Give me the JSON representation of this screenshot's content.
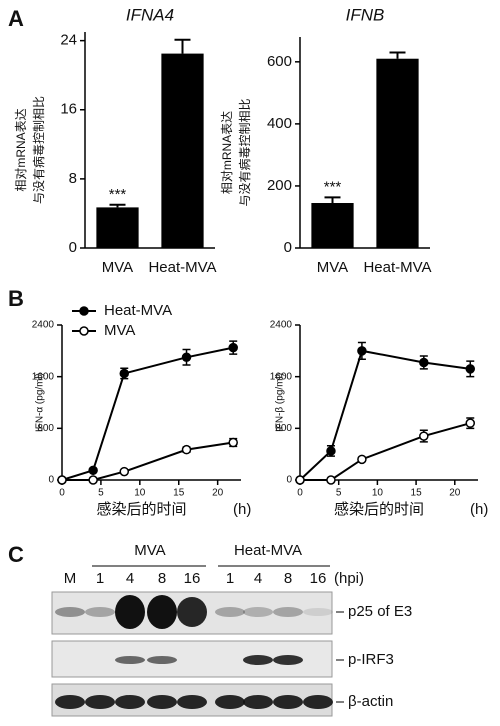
{
  "panel_labels": [
    "A",
    "B",
    "C"
  ],
  "chart_data": [
    {
      "type": "bar",
      "title": "IFNA4",
      "ylabel": [
        "相对mRNA表达",
        "与没有病毒控制相比"
      ],
      "categories": [
        "MVA",
        "Heat-MVA"
      ],
      "values": [
        4.7,
        22.5
      ],
      "errors": [
        0.3,
        1.6
      ],
      "value_annotations": [
        "***",
        null
      ],
      "color": "#000000",
      "ylim": [
        0,
        25
      ],
      "yticks": [
        0,
        8,
        16,
        24
      ]
    },
    {
      "type": "bar",
      "title": "IFNB",
      "ylabel": [
        "相对mRNA表达",
        "与没有病毒控制相比"
      ],
      "categories": [
        "MVA",
        "Heat-MVA"
      ],
      "values": [
        145,
        610
      ],
      "errors": [
        18,
        20
      ],
      "value_annotations": [
        "***",
        null
      ],
      "color": "#000000",
      "ylim": [
        0,
        680
      ],
      "yticks": [
        0,
        200,
        400,
        600
      ]
    },
    {
      "type": "line",
      "ylabel": "IFN-α (pg/ml)",
      "xlabel": "感染后的时间",
      "xunit": "(h)",
      "x": [
        0,
        4,
        8,
        16,
        22
      ],
      "legend": "upper left",
      "series": [
        {
          "name": "Heat-MVA",
          "color": "#000000",
          "marker": "filled",
          "values": [
            0,
            150,
            1650,
            1900,
            2050
          ],
          "errors": [
            0,
            20,
            80,
            120,
            100
          ]
        },
        {
          "name": "MVA",
          "color": "#000000",
          "marker": "open",
          "values": [
            0,
            0,
            130,
            470,
            580
          ],
          "errors": [
            0,
            0,
            20,
            40,
            60
          ]
        }
      ],
      "xlim": [
        0,
        23
      ],
      "xticks": [
        0,
        5,
        10,
        15,
        20
      ],
      "ylim": [
        0,
        2400
      ],
      "yticks": [
        0,
        800,
        1600,
        2400
      ]
    },
    {
      "type": "line",
      "ylabel": "IFN-β (pg/ml)",
      "xlabel": "感染后的时间",
      "xunit": "(h)",
      "x": [
        0,
        4,
        8,
        16,
        22
      ],
      "series": [
        {
          "color": "#000000",
          "marker": "filled",
          "values": [
            0,
            450,
            2000,
            1820,
            1720
          ],
          "errors": [
            0,
            80,
            130,
            100,
            120
          ]
        },
        {
          "color": "#000000",
          "marker": "open",
          "values": [
            0,
            0,
            320,
            680,
            880
          ],
          "errors": [
            0,
            0,
            30,
            90,
            80
          ]
        }
      ],
      "xlim": [
        0,
        23
      ],
      "xticks": [
        0,
        5,
        10,
        15,
        20
      ],
      "ylim": [
        0,
        2400
      ],
      "yticks": [
        0,
        800,
        1600,
        2400
      ]
    }
  ],
  "blot": {
    "groups": [
      "MVA",
      "Heat-MVA"
    ],
    "lanes": [
      "M",
      "1",
      "4",
      "8",
      "16",
      "1",
      "4",
      "8",
      "16"
    ],
    "unit": "(hpi)",
    "rows": [
      "p25 of E3",
      "p-IRF3",
      "β-actin"
    ]
  }
}
